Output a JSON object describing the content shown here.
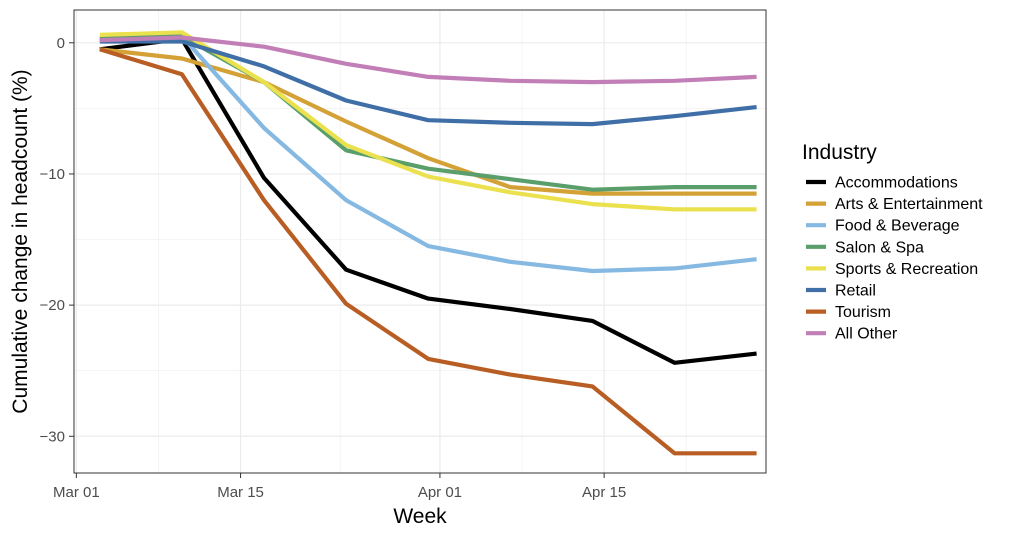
{
  "chart_data": {
    "type": "line",
    "xlabel": "Week",
    "ylabel": "Cumulative change in headcount (%)",
    "ylim": [
      -32.8,
      2.5
    ],
    "xlim_days": [
      -0.2,
      58.8
    ],
    "x_ticks": [
      {
        "label": "Mar 01",
        "day": 0
      },
      {
        "label": "Mar 15",
        "day": 14
      },
      {
        "label": "Apr 01",
        "day": 31
      },
      {
        "label": "Apr 15",
        "day": 45
      }
    ],
    "y_ticks": [
      0,
      -10,
      -20,
      -30
    ],
    "y_tick_labels": [
      "0",
      "−10",
      "−20",
      "−30"
    ],
    "x_days": [
      2,
      9,
      16,
      23,
      30,
      37,
      44,
      51,
      58
    ],
    "legend_title": "Industry",
    "grid": true,
    "series": [
      {
        "name": "Accommodations",
        "color": "#000000",
        "values": [
          -0.5,
          0.3,
          -10.3,
          -17.3,
          -19.5,
          -20.3,
          -21.2,
          -24.4,
          -23.7
        ]
      },
      {
        "name": "Arts & Entertainment",
        "color": "#d4a137",
        "values": [
          -0.5,
          -1.2,
          -3.0,
          -6.0,
          -8.8,
          -11.0,
          -11.5,
          -11.5,
          -11.5
        ]
      },
      {
        "name": "Food & Beverage",
        "color": "#86b9e2",
        "values": [
          0.3,
          0.5,
          -6.5,
          -12.0,
          -15.5,
          -16.7,
          -17.4,
          -17.2,
          -16.5
        ]
      },
      {
        "name": "Salon & Spa",
        "color": "#5a9e6c",
        "values": [
          0.3,
          0.5,
          -3.0,
          -8.2,
          -9.6,
          -10.4,
          -11.2,
          -11.0,
          -11.0
        ]
      },
      {
        "name": "Sports & Recreation",
        "color": "#ebe14f",
        "values": [
          0.6,
          0.8,
          -3.0,
          -7.8,
          -10.2,
          -11.4,
          -12.3,
          -12.7,
          -12.7
        ]
      },
      {
        "name": "Retail",
        "color": "#3f6fa6",
        "values": [
          0.1,
          0.1,
          -1.8,
          -4.4,
          -5.9,
          -6.1,
          -6.2,
          -5.6,
          -4.9
        ]
      },
      {
        "name": "Tourism",
        "color": "#b85e24",
        "values": [
          -0.5,
          -2.4,
          -12.0,
          -19.9,
          -24.1,
          -25.3,
          -26.2,
          -31.3,
          -31.3
        ]
      },
      {
        "name": "All Other",
        "color": "#c27fb7",
        "values": [
          0.2,
          0.4,
          -0.3,
          -1.6,
          -2.6,
          -2.9,
          -3.0,
          -2.9,
          -2.6
        ]
      }
    ]
  }
}
